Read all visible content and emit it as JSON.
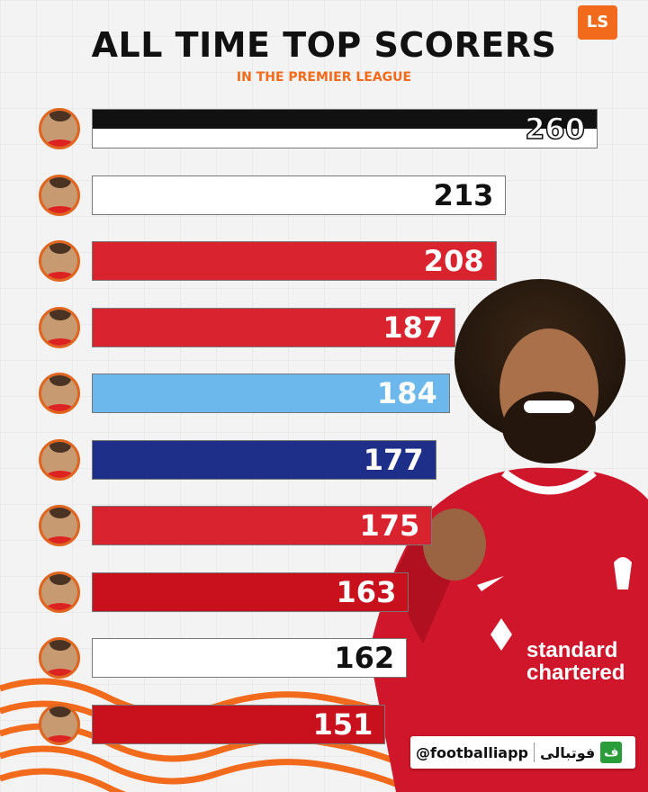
{
  "header": {
    "title": "ALL TIME TOP SCORERS",
    "subtitle": "IN THE PREMIER LEAGUE",
    "logo": "LS"
  },
  "chart_data": {
    "type": "bar",
    "orientation": "horizontal",
    "title": "ALL TIME TOP SCORERS",
    "subtitle": "IN THE PREMIER LEAGUE",
    "values": [
      260,
      213,
      208,
      187,
      184,
      177,
      175,
      163,
      162,
      151
    ],
    "colors": [
      "#111111",
      "#ffffff",
      "#d9232e",
      "#d9232e",
      "#6cb8ec",
      "#1e2f8a",
      "#d9232e",
      "#c9111e",
      "#ffffff",
      "#c9111e"
    ],
    "split_colors": [
      [
        "#111111",
        "#ffffff"
      ],
      null,
      null,
      null,
      null,
      null,
      null,
      null,
      null,
      null
    ],
    "label_colors": [
      "#ffffff",
      "#111111",
      "#ffffff",
      "#ffffff",
      "#ffffff",
      "#ffffff",
      "#ffffff",
      "#ffffff",
      "#111111",
      "#ffffff"
    ],
    "xlim": [
      0,
      260
    ]
  },
  "watermark": {
    "handle": "@footballiapp",
    "brand": "فوتبالی",
    "mark": "ف"
  }
}
